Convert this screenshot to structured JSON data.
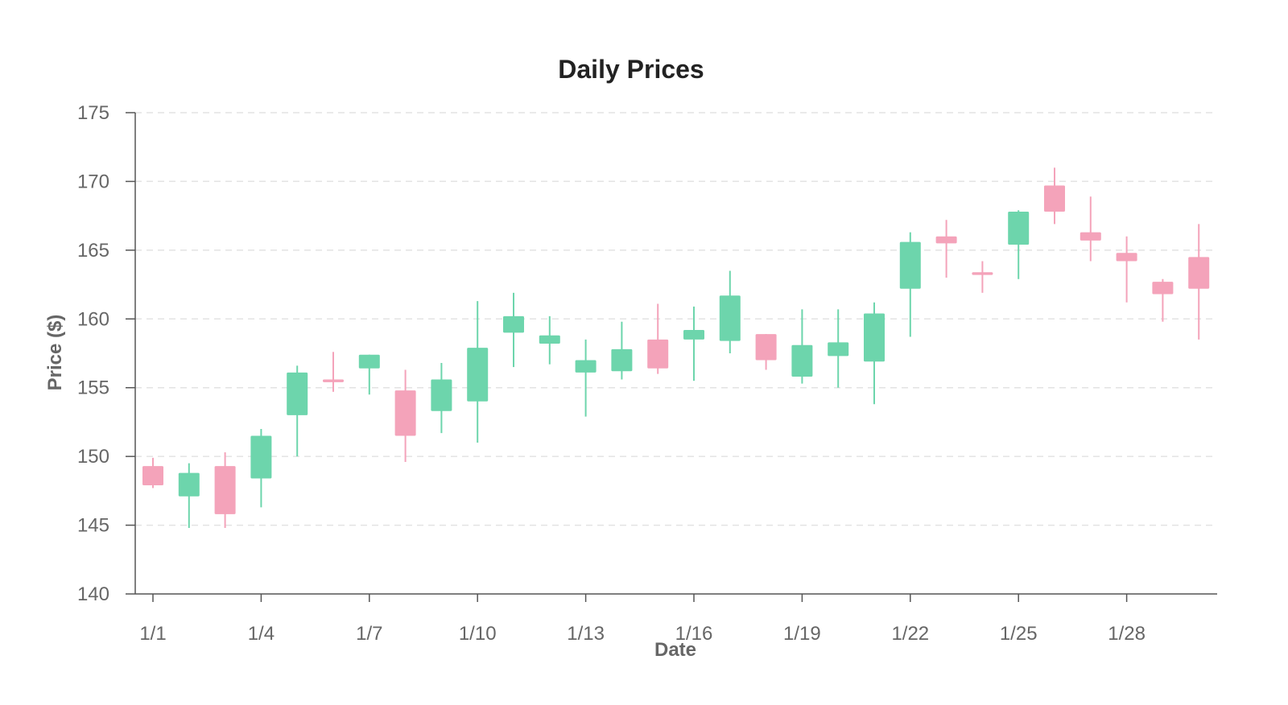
{
  "chart_data": {
    "type": "candlestick",
    "title": "Daily Prices",
    "xlabel": "Date",
    "ylabel": "Price ($)",
    "ylim": [
      140,
      175
    ],
    "yticks": [
      140,
      145,
      150,
      155,
      160,
      165,
      170,
      175
    ],
    "xtick_labels": [
      "1/1",
      "1/4",
      "1/7",
      "1/10",
      "1/13",
      "1/16",
      "1/19",
      "1/22",
      "1/25",
      "1/28"
    ],
    "grid": "horizontal dashed",
    "colors": {
      "up": "#6dd5ac",
      "down": "#f4a3ba"
    },
    "candles": [
      {
        "date": "1/1",
        "open": 149.3,
        "high": 149.9,
        "low": 147.7,
        "close": 147.9
      },
      {
        "date": "1/2",
        "open": 147.1,
        "high": 149.5,
        "low": 144.8,
        "close": 148.8
      },
      {
        "date": "1/3",
        "open": 149.3,
        "high": 150.3,
        "low": 144.8,
        "close": 145.8
      },
      {
        "date": "1/4",
        "open": 148.4,
        "high": 152.0,
        "low": 146.3,
        "close": 151.5
      },
      {
        "date": "1/5",
        "open": 153.0,
        "high": 156.6,
        "low": 150.0,
        "close": 156.1
      },
      {
        "date": "1/6",
        "open": 155.6,
        "high": 157.6,
        "low": 154.7,
        "close": 155.4
      },
      {
        "date": "1/7",
        "open": 156.4,
        "high": 157.4,
        "low": 154.5,
        "close": 157.4
      },
      {
        "date": "1/8",
        "open": 154.8,
        "high": 156.3,
        "low": 149.6,
        "close": 151.5
      },
      {
        "date": "1/9",
        "open": 153.3,
        "high": 156.8,
        "low": 151.7,
        "close": 155.6
      },
      {
        "date": "1/10",
        "open": 154.0,
        "high": 161.3,
        "low": 151.0,
        "close": 157.9
      },
      {
        "date": "1/11",
        "open": 159.0,
        "high": 161.9,
        "low": 156.5,
        "close": 160.2
      },
      {
        "date": "1/12",
        "open": 158.2,
        "high": 160.2,
        "low": 156.7,
        "close": 158.8
      },
      {
        "date": "1/13",
        "open": 156.1,
        "high": 158.5,
        "low": 152.9,
        "close": 157.0
      },
      {
        "date": "1/14",
        "open": 156.2,
        "high": 159.8,
        "low": 155.6,
        "close": 157.8
      },
      {
        "date": "1/15",
        "open": 158.5,
        "high": 161.1,
        "low": 156.0,
        "close": 156.4
      },
      {
        "date": "1/16",
        "open": 158.5,
        "high": 160.9,
        "low": 155.5,
        "close": 159.2
      },
      {
        "date": "1/17",
        "open": 158.4,
        "high": 163.5,
        "low": 157.5,
        "close": 161.7
      },
      {
        "date": "1/18",
        "open": 158.9,
        "high": 158.9,
        "low": 156.3,
        "close": 157.0
      },
      {
        "date": "1/19",
        "open": 155.8,
        "high": 160.7,
        "low": 155.3,
        "close": 158.1
      },
      {
        "date": "1/20",
        "open": 157.3,
        "high": 160.7,
        "low": 155.0,
        "close": 158.3
      },
      {
        "date": "1/21",
        "open": 156.9,
        "high": 161.2,
        "low": 153.8,
        "close": 160.4
      },
      {
        "date": "1/22",
        "open": 162.2,
        "high": 166.3,
        "low": 158.7,
        "close": 165.6
      },
      {
        "date": "1/23",
        "open": 166.0,
        "high": 167.2,
        "low": 163.0,
        "close": 165.5
      },
      {
        "date": "1/24",
        "open": 163.4,
        "high": 164.2,
        "low": 161.9,
        "close": 163.2
      },
      {
        "date": "1/25",
        "open": 165.4,
        "high": 167.9,
        "low": 162.9,
        "close": 167.8
      },
      {
        "date": "1/26",
        "open": 169.7,
        "high": 171.0,
        "low": 166.9,
        "close": 167.8
      },
      {
        "date": "1/27",
        "open": 166.3,
        "high": 168.9,
        "low": 164.2,
        "close": 165.7
      },
      {
        "date": "1/28",
        "open": 164.8,
        "high": 166.0,
        "low": 161.2,
        "close": 164.2
      },
      {
        "date": "1/29",
        "open": 162.7,
        "high": 162.9,
        "low": 159.8,
        "close": 161.8
      },
      {
        "date": "1/30",
        "open": 164.5,
        "high": 166.9,
        "low": 158.5,
        "close": 162.2
      }
    ]
  }
}
